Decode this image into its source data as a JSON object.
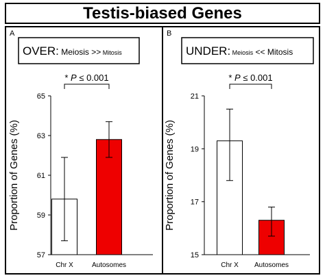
{
  "figure_title": "Testis-biased Genes",
  "colors": {
    "autosome_bar": "#ee0000",
    "chrx_bar": "#ffffff",
    "outline": "#000000"
  },
  "chart_data": [
    {
      "type": "bar",
      "panel_letter": "A",
      "condition": {
        "prefix": "OVER:",
        "left": "Meiosis",
        "op": ">>",
        "right": "Mitosis"
      },
      "significance": {
        "star": "*",
        "p": "P",
        "rel": "≤ 0.001"
      },
      "ylabel": "Proportion of Genes (%)",
      "ylim": [
        57,
        65
      ],
      "yticks": [
        "57",
        "59",
        "61",
        "63",
        "65"
      ],
      "categories": [
        "Chr X",
        "Autosomes"
      ],
      "values": [
        59.8,
        62.8
      ],
      "error": [
        [
          57.7,
          61.9
        ],
        [
          61.9,
          63.7
        ]
      ],
      "bar_colors": [
        "#ffffff",
        "#ee0000"
      ]
    },
    {
      "type": "bar",
      "panel_letter": "B",
      "condition": {
        "prefix": "UNDER:",
        "left": "Meiosis",
        "op": "<<",
        "right": "Mitosis"
      },
      "significance": {
        "star": "*",
        "p": "P",
        "rel": "≤ 0.001"
      },
      "ylabel": "Proportion of Genes (%)",
      "ylim": [
        15,
        21
      ],
      "yticks": [
        "15",
        "17",
        "19",
        "21"
      ],
      "categories": [
        "Chr X",
        "Autosomes"
      ],
      "values": [
        19.3,
        16.3
      ],
      "error": [
        [
          17.8,
          20.5
        ],
        [
          15.7,
          16.8
        ]
      ],
      "bar_colors": [
        "#ffffff",
        "#ee0000"
      ]
    }
  ]
}
